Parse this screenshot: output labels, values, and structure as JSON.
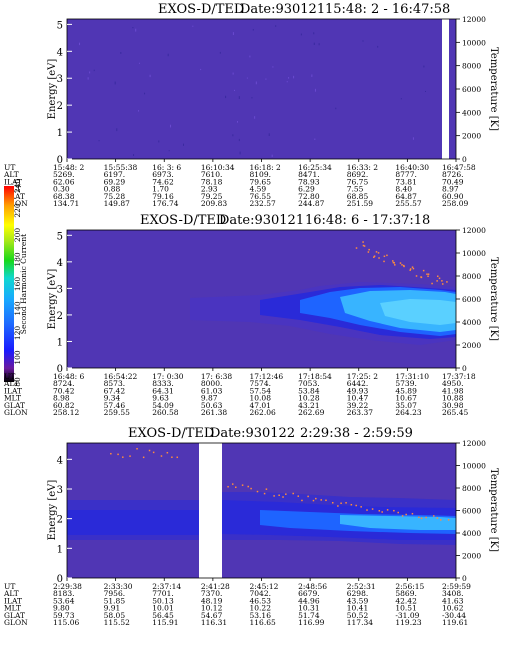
{
  "colors": {
    "background": "#5036b4",
    "band_dark": "#2a2ad8",
    "band_mid": "#1e64ff",
    "band_bright": "#38b4ff",
    "dot": "#ff8c3c"
  },
  "chart_data": [
    {
      "type": "heatmap",
      "instrument": "EXOS-D/TED",
      "date": "Date:930121",
      "time_range": "15:48: 2 - 16:47:58",
      "ylabel": "Energy [eV]",
      "y2label": "Temperature [K]",
      "yticks": [
        "0",
        "1",
        "2",
        "3",
        "4",
        "5"
      ],
      "y2ticks": [
        "0",
        "2000",
        "4000",
        "6000",
        "8000",
        "10000",
        "12000"
      ],
      "ylim": [
        0,
        5.2
      ],
      "y2lim": [
        0,
        12000
      ],
      "data_gaps": [
        [
          16.45,
          16.47
        ]
      ],
      "table": {
        "row_labels": [
          "UT",
          "ALT",
          "ILAT",
          "MLT",
          "GLAT",
          "GLON"
        ],
        "columns": [
          [
            "15:48: 2",
            "5269.",
            "62.06",
            "0.30",
            "68.38",
            "134.71"
          ],
          [
            "15:55:38",
            "6197.",
            "69.29",
            "0.88",
            "75.28",
            "149.87"
          ],
          [
            "16: 3: 6",
            "6973.",
            "74.62",
            "1.70",
            "79.16",
            "176.74"
          ],
          [
            "16:10:34",
            "7610.",
            "78.18",
            "2.93",
            "79.25",
            "209.83"
          ],
          [
            "16:18: 2",
            "8109.",
            "79.65",
            "4.59",
            "76.55",
            "232.57"
          ],
          [
            "16:25:34",
            "8471.",
            "78.93",
            "6.29",
            "72.80",
            "244.87"
          ],
          [
            "16:33: 2",
            "8692.",
            "76.75",
            "7.55",
            "68.85",
            "251.59"
          ],
          [
            "16:40:30",
            "8777.",
            "73.81",
            "8.40",
            "64.87",
            "255.57"
          ],
          [
            "16:47:58",
            "8726.",
            "70.49",
            "8.97",
            "60.90",
            "258.09"
          ]
        ]
      }
    },
    {
      "type": "heatmap",
      "instrument": "EXOS-D/TED",
      "date": "Date:930121",
      "time_range": "16:48: 6 - 17:37:18",
      "ylabel": "Energy [eV]",
      "y2label": "Temperature [K]",
      "yticks": [
        "0",
        "1",
        "2",
        "3",
        "4",
        "5"
      ],
      "y2ticks": [
        "0",
        "2000",
        "4000",
        "6000",
        "8000",
        "10000",
        "12000"
      ],
      "ylim": [
        0,
        5.2
      ],
      "y2lim": [
        0,
        12000
      ],
      "colorbar": {
        "label": "Second Harmonic Current",
        "ticks": [
          "80",
          "100",
          "120",
          "140",
          "160",
          "180",
          "200",
          "220",
          "240"
        ],
        "range": [
          80,
          240
        ],
        "colors": [
          "#000000",
          "#6a1aa0",
          "#1a1aff",
          "#1e6cff",
          "#18a8ff",
          "#10d8d0",
          "#18d81a",
          "#a8e818",
          "#ffff00",
          "#ffa000",
          "#ff0000"
        ]
      },
      "table": {
        "row_labels": [
          "UT",
          "ALT",
          "ILAT",
          "MLT",
          "GLAT",
          "GLON"
        ],
        "columns": [
          [
            "16:48: 6",
            "8724.",
            "70.42",
            "8.98",
            "60.82",
            "258.12"
          ],
          [
            "16:54:22",
            "8573.",
            "67.42",
            "9.34",
            "57.46",
            "259.55"
          ],
          [
            "17: 0:30",
            "8333.",
            "64.31",
            "9.63",
            "54.09",
            "260.58"
          ],
          [
            "17: 6:38",
            "8000.",
            "61.03",
            "9.87",
            "50.63",
            "261.38"
          ],
          [
            "17:12:46",
            "7574.",
            "57.54",
            "10.08",
            "47.01",
            "262.06"
          ],
          [
            "17:18:54",
            "7053.",
            "53.84",
            "10.28",
            "43.21",
            "262.69"
          ],
          [
            "17:25: 2",
            "6442.",
            "49.93",
            "10.47",
            "39.22",
            "263.37"
          ],
          [
            "17:31:10",
            "5739.",
            "45.89",
            "10.67",
            "35.07",
            "264.23"
          ],
          [
            "17:37:18",
            "4950.",
            "41.98",
            "10.88",
            "30.98",
            "265.45"
          ]
        ]
      }
    },
    {
      "type": "heatmap",
      "instrument": "EXOS-D/TED",
      "date": "Date:930122",
      "time_range": "2:29:38 - 2:59:59",
      "ylabel": "Energy [eV]",
      "y2label": "Temperature [K]",
      "yticks": [
        "0",
        "1",
        "2",
        "3",
        "4"
      ],
      "y2ticks": [
        "0",
        "2000",
        "4000",
        "6000",
        "8000",
        "10000",
        "12000"
      ],
      "ylim": [
        0,
        4.55
      ],
      "y2lim": [
        0,
        12000
      ],
      "data_gaps": [
        [
          2.41,
          2.44
        ]
      ],
      "table": {
        "row_labels": [
          "UT",
          "ALT",
          "ILAT",
          "MLT",
          "GLAT",
          "GLON"
        ],
        "columns": [
          [
            "2:29:38",
            "8183.",
            "53.64",
            "9.80",
            "59.73",
            "115.06"
          ],
          [
            "2:33:30",
            "7956.",
            "51.85",
            "9.91",
            "58.05",
            "115.52"
          ],
          [
            "2:37:14",
            "7701.",
            "50.13",
            "10.01",
            "56.45",
            "115.91"
          ],
          [
            "2:41:28",
            "7370.",
            "48.19",
            "10.12",
            "54.67",
            "116.31"
          ],
          [
            "2:45:12",
            "7042.",
            "46.53",
            "10.22",
            "53.16",
            "116.65"
          ],
          [
            "2:48:56",
            "6679.",
            "44.96",
            "10.31",
            "51.74",
            "116.99"
          ],
          [
            "2:52:31",
            "6298.",
            "43.59",
            "10.41",
            "50.52",
            "117.34"
          ],
          [
            "2:56:15",
            "5869.",
            "42.42",
            "10.51",
            "-31.09",
            "119.23"
          ],
          [
            "2:59:59",
            "3408.",
            "41.63",
            "10.62",
            "-30.44",
            "119.61"
          ]
        ]
      }
    }
  ]
}
